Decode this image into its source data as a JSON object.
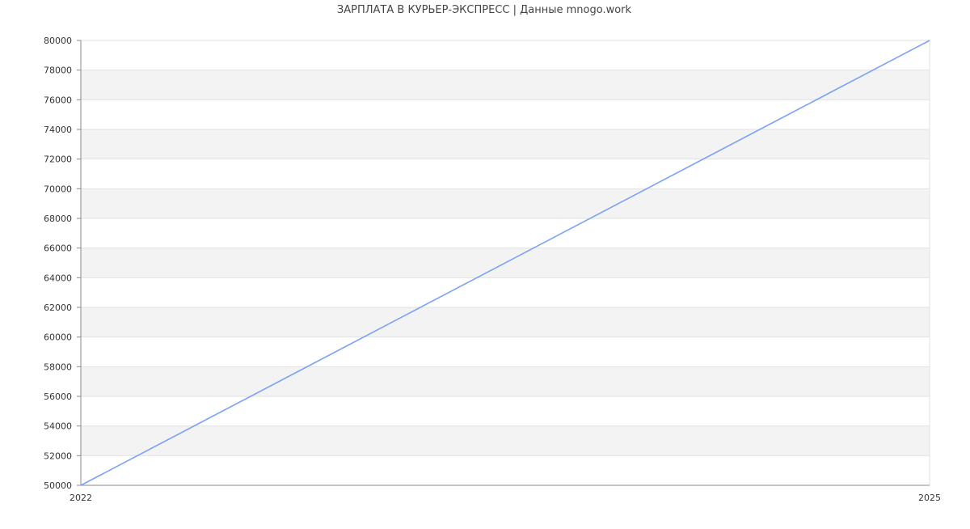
{
  "chart_data": {
    "type": "line",
    "title": "ЗАРПЛАТА В КУРЬЕР-ЭКСПРЕСС | Данные mnogo.work",
    "xlabel": "",
    "ylabel": "",
    "x": [
      2022,
      2025
    ],
    "x_ticks": [
      "2022",
      "2025"
    ],
    "xlim": [
      2022,
      2025
    ],
    "ylim": [
      50000,
      80000
    ],
    "y_ticks": [
      50000,
      52000,
      54000,
      56000,
      58000,
      60000,
      62000,
      64000,
      66000,
      68000,
      70000,
      72000,
      74000,
      76000,
      78000,
      80000
    ],
    "series": [
      {
        "values": [
          50000,
          80000
        ],
        "color": "#7aa2f7"
      }
    ],
    "grid": true,
    "band_colors": [
      "#ffffff",
      "#f3f3f3"
    ],
    "legend": "none"
  }
}
